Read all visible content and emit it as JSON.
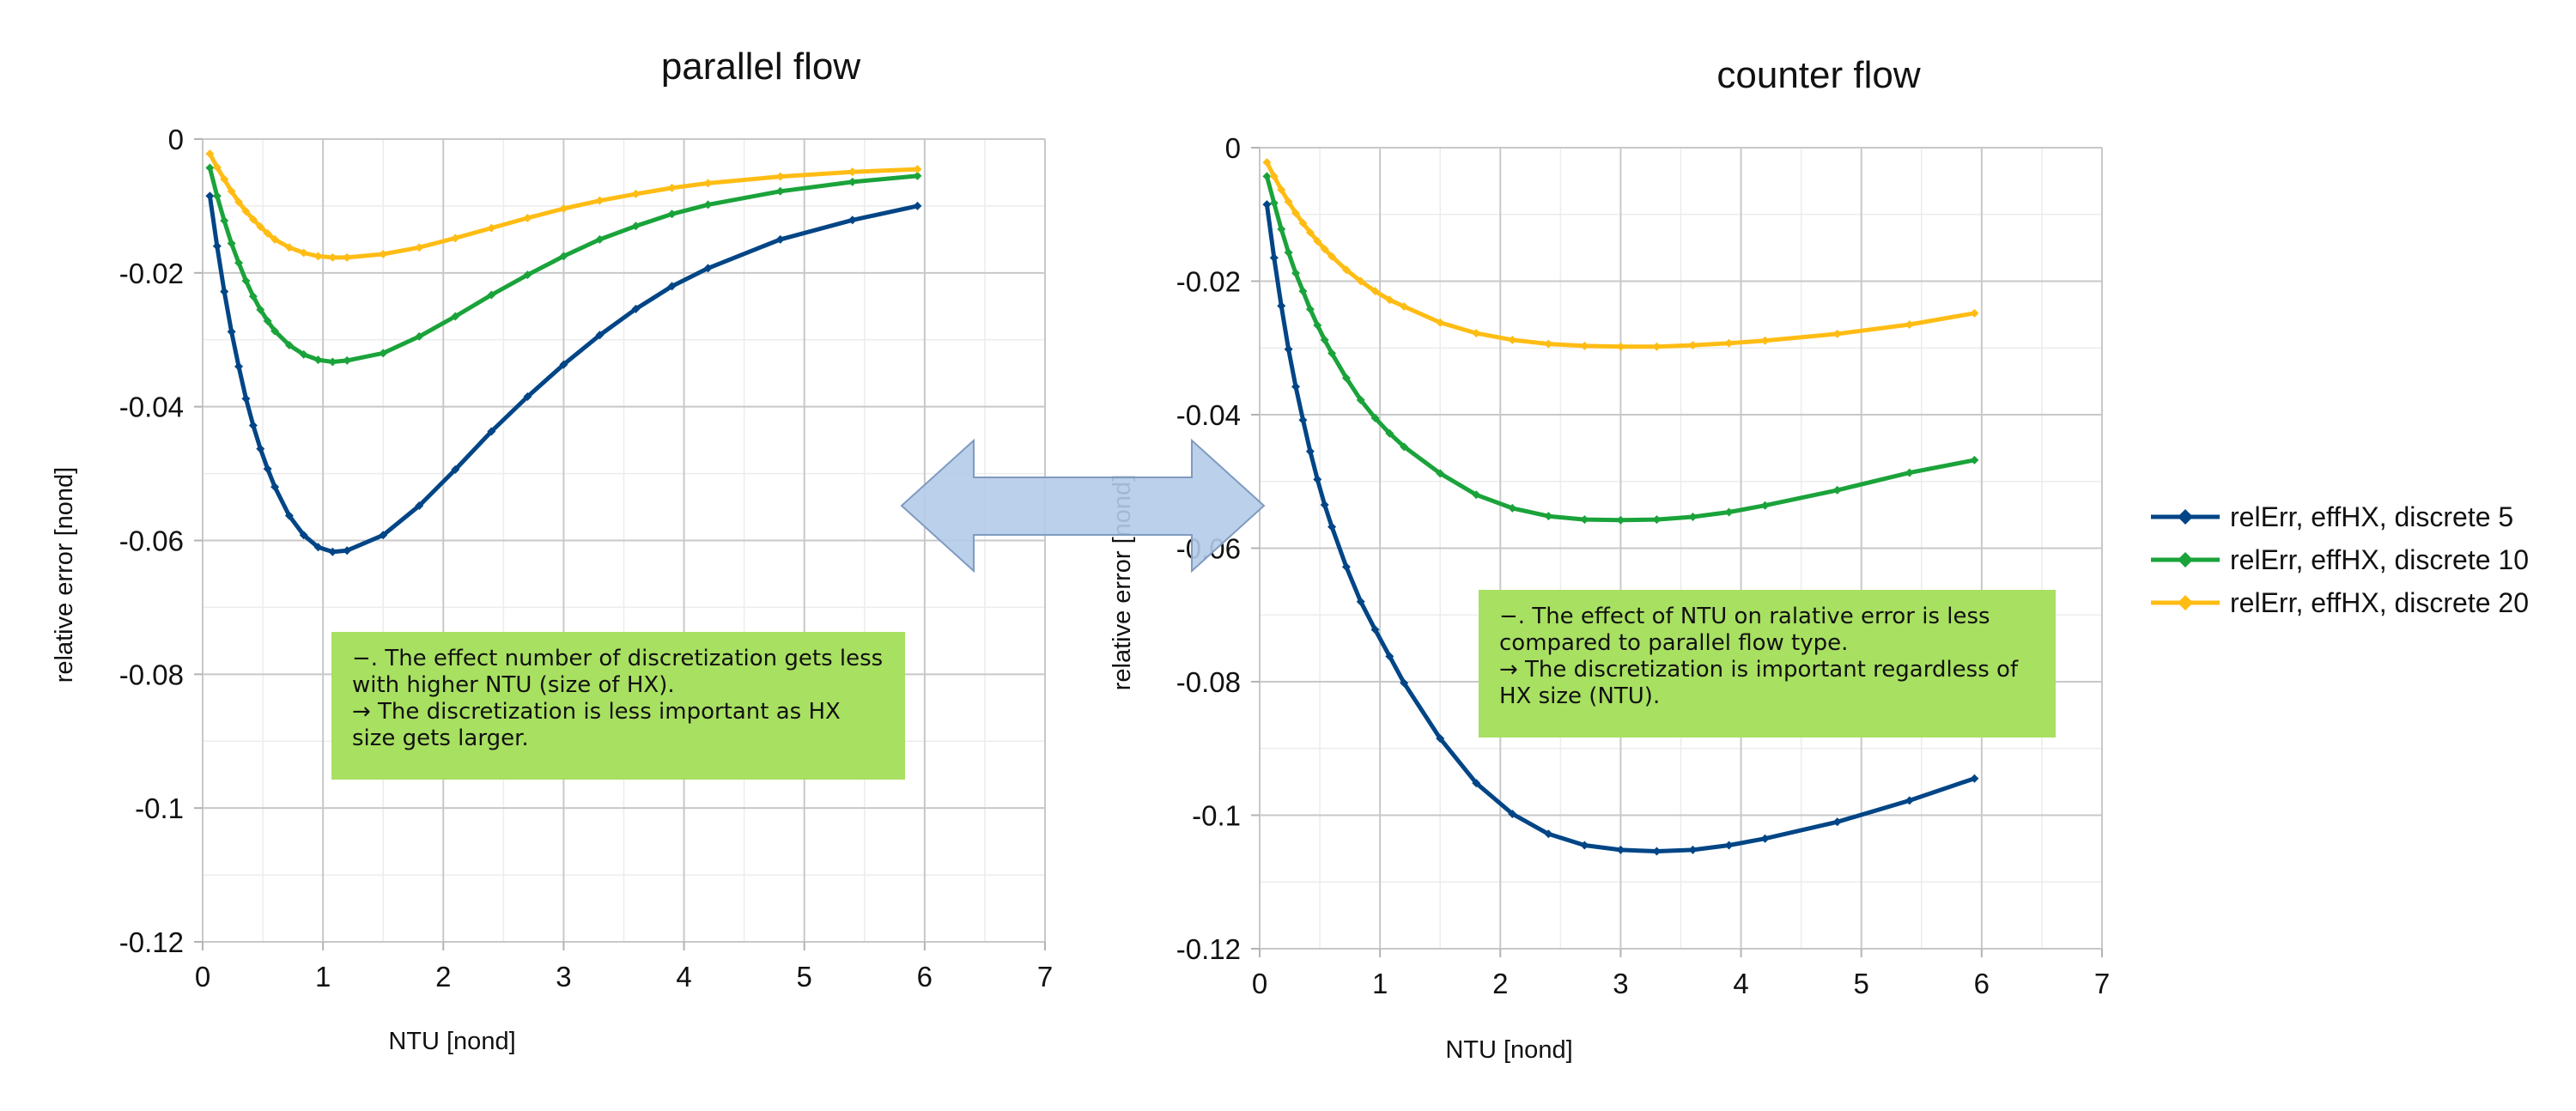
{
  "chart_data": [
    {
      "type": "line",
      "title": "parallel flow",
      "xlabel": "NTU [nond]",
      "ylabel": "relative error [nond]",
      "xlim": [
        0,
        7
      ],
      "ylim": [
        -0.12,
        0
      ],
      "xticks": [
        0,
        1,
        2,
        3,
        4,
        5,
        6,
        7
      ],
      "yticks": [
        0,
        -0.02,
        -0.04,
        -0.06,
        -0.08,
        -0.1,
        -0.12
      ],
      "grid": true,
      "series": [
        {
          "name": "relErr, effHX, discrete 5",
          "color": "#004586",
          "x": [
            0.06,
            0.12,
            0.18,
            0.24,
            0.3,
            0.36,
            0.42,
            0.48,
            0.54,
            0.6,
            0.72,
            0.84,
            0.96,
            1.08,
            1.2,
            1.5,
            1.8,
            2.1,
            2.4,
            2.7,
            3.0,
            3.3,
            3.6,
            3.9,
            4.2,
            4.8,
            5.4,
            5.94
          ],
          "y": [
            -0.0085,
            -0.016,
            -0.0228,
            -0.0288,
            -0.034,
            -0.0388,
            -0.0428,
            -0.0463,
            -0.0493,
            -0.052,
            -0.0563,
            -0.0592,
            -0.061,
            -0.0617,
            -0.0615,
            -0.0592,
            -0.0548,
            -0.0494,
            -0.0437,
            -0.0385,
            -0.0337,
            -0.0293,
            -0.0254,
            -0.022,
            -0.0193,
            -0.015,
            -0.0121,
            -0.01
          ]
        },
        {
          "name": "relErr, effHX, discrete 10",
          "color": "#1aa33a",
          "x": [
            0.06,
            0.12,
            0.18,
            0.24,
            0.3,
            0.36,
            0.42,
            0.48,
            0.54,
            0.6,
            0.72,
            0.84,
            0.96,
            1.08,
            1.2,
            1.5,
            1.8,
            2.1,
            2.4,
            2.7,
            3.0,
            3.3,
            3.6,
            3.9,
            4.2,
            4.8,
            5.4,
            5.94
          ],
          "y": [
            -0.0043,
            -0.0085,
            -0.0122,
            -0.0156,
            -0.0185,
            -0.0212,
            -0.0235,
            -0.0255,
            -0.0272,
            -0.0287,
            -0.0308,
            -0.0322,
            -0.033,
            -0.0333,
            -0.0331,
            -0.032,
            -0.0295,
            -0.0265,
            -0.0233,
            -0.0203,
            -0.0175,
            -0.015,
            -0.013,
            -0.0112,
            -0.0098,
            -0.0078,
            -0.0064,
            -0.0055
          ]
        },
        {
          "name": "relErr, effHX, discrete 20",
          "color": "#ffbc14",
          "x": [
            0.06,
            0.12,
            0.18,
            0.24,
            0.3,
            0.36,
            0.42,
            0.48,
            0.54,
            0.6,
            0.72,
            0.84,
            0.96,
            1.08,
            1.2,
            1.5,
            1.8,
            2.1,
            2.4,
            2.7,
            3.0,
            3.3,
            3.6,
            3.9,
            4.2,
            4.8,
            5.4,
            5.94
          ],
          "y": [
            -0.0022,
            -0.0042,
            -0.006,
            -0.0078,
            -0.0094,
            -0.0108,
            -0.012,
            -0.0131,
            -0.0141,
            -0.015,
            -0.0162,
            -0.017,
            -0.0175,
            -0.0177,
            -0.0177,
            -0.0172,
            -0.0162,
            -0.0148,
            -0.0133,
            -0.0118,
            -0.0104,
            -0.0092,
            -0.0082,
            -0.0073,
            -0.0066,
            -0.0056,
            -0.0049,
            -0.0045
          ]
        }
      ]
    },
    {
      "type": "line",
      "title": "counter flow",
      "xlabel": "NTU [nond]",
      "ylabel": "relative error [nond]",
      "xlim": [
        0,
        7
      ],
      "ylim": [
        -0.12,
        0
      ],
      "xticks": [
        0,
        1,
        2,
        3,
        4,
        5,
        6,
        7
      ],
      "yticks": [
        0,
        -0.02,
        -0.04,
        -0.06,
        -0.08,
        -0.1,
        -0.12
      ],
      "grid": true,
      "series": [
        {
          "name": "relErr, effHX, discrete 5",
          "color": "#004586",
          "x": [
            0.06,
            0.12,
            0.18,
            0.24,
            0.3,
            0.36,
            0.42,
            0.48,
            0.54,
            0.6,
            0.72,
            0.84,
            0.96,
            1.08,
            1.2,
            1.5,
            1.8,
            2.1,
            2.4,
            2.7,
            3.0,
            3.3,
            3.6,
            3.9,
            4.2,
            4.8,
            5.4,
            5.94
          ],
          "y": [
            -0.0085,
            -0.0165,
            -0.0237,
            -0.0302,
            -0.0358,
            -0.0408,
            -0.0455,
            -0.0497,
            -0.0535,
            -0.0568,
            -0.0628,
            -0.068,
            -0.0722,
            -0.0762,
            -0.0802,
            -0.0885,
            -0.0952,
            -0.0998,
            -0.1028,
            -0.1045,
            -0.1052,
            -0.1054,
            -0.1052,
            -0.1045,
            -0.1035,
            -0.101,
            -0.0978,
            -0.0945
          ]
        },
        {
          "name": "relErr, effHX, discrete 10",
          "color": "#1aa33a",
          "x": [
            0.06,
            0.12,
            0.18,
            0.24,
            0.3,
            0.36,
            0.42,
            0.48,
            0.54,
            0.6,
            0.72,
            0.84,
            0.96,
            1.08,
            1.2,
            1.5,
            1.8,
            2.1,
            2.4,
            2.7,
            3.0,
            3.3,
            3.6,
            3.9,
            4.2,
            4.8,
            5.4,
            5.94
          ],
          "y": [
            -0.0043,
            -0.0083,
            -0.0122,
            -0.0157,
            -0.0188,
            -0.0215,
            -0.0242,
            -0.0266,
            -0.0288,
            -0.0308,
            -0.0345,
            -0.0378,
            -0.0405,
            -0.0428,
            -0.0448,
            -0.0488,
            -0.052,
            -0.054,
            -0.0552,
            -0.0557,
            -0.0558,
            -0.0557,
            -0.0553,
            -0.0546,
            -0.0536,
            -0.0513,
            -0.0487,
            -0.0468
          ]
        },
        {
          "name": "relErr, effHX, discrete 20",
          "color": "#ffbc14",
          "x": [
            0.06,
            0.12,
            0.18,
            0.24,
            0.3,
            0.36,
            0.42,
            0.48,
            0.54,
            0.6,
            0.72,
            0.84,
            0.96,
            1.08,
            1.2,
            1.5,
            1.8,
            2.1,
            2.4,
            2.7,
            3.0,
            3.3,
            3.6,
            3.9,
            4.2,
            4.8,
            5.4,
            5.94
          ],
          "y": [
            -0.0022,
            -0.0043,
            -0.0063,
            -0.0081,
            -0.0098,
            -0.0113,
            -0.0127,
            -0.014,
            -0.0152,
            -0.0163,
            -0.0183,
            -0.02,
            -0.0215,
            -0.0228,
            -0.0238,
            -0.0262,
            -0.0278,
            -0.0288,
            -0.0294,
            -0.0297,
            -0.0298,
            -0.0298,
            -0.0296,
            -0.0293,
            -0.0289,
            -0.0279,
            -0.0265,
            -0.0248
          ]
        }
      ]
    }
  ],
  "legend": {
    "position": "right",
    "items": [
      {
        "label": "relErr, effHX, discrete 5",
        "color": "#004586"
      },
      {
        "label": "relErr, effHX, discrete 10",
        "color": "#1aa33a"
      },
      {
        "label": "relErr, effHX, discrete 20",
        "color": "#ffbc14"
      }
    ]
  },
  "annotations": {
    "parallel": "−. The effect number of discretization gets less with higher NTU (size of HX).\n → The discretization is less important as HX size gets larger.",
    "counter": "−. The effect of NTU on ralative error is less compared to parallel flow type.\n → The discretization is important regardless of HX size (NTU)."
  },
  "arrow": {
    "color": "#b4cbe8",
    "stroke": "#7f9bc0"
  }
}
